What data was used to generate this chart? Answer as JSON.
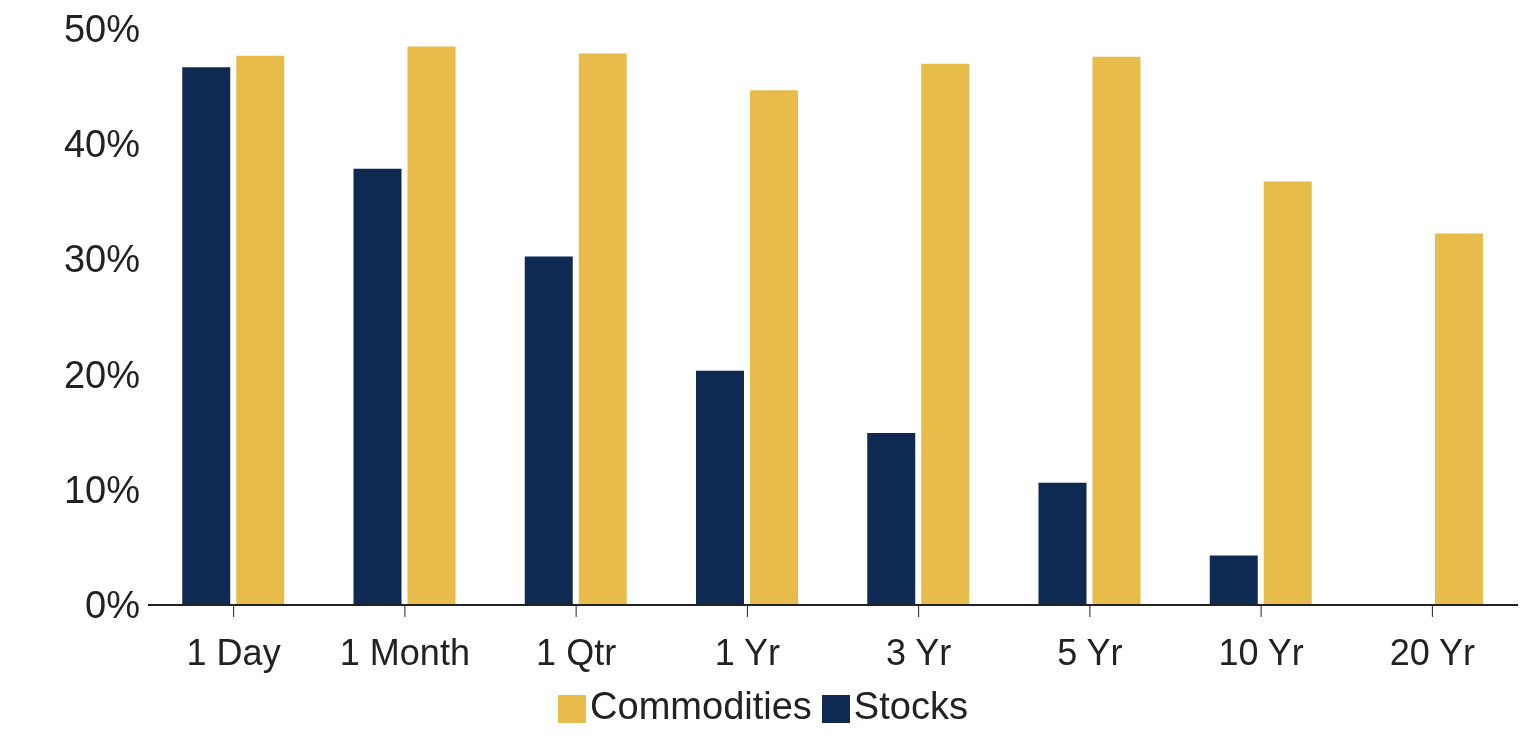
{
  "chart_data": {
    "type": "bar",
    "categories": [
      "1 Day",
      "1 Month",
      "1 Qtr",
      "1 Yr",
      "3 Yr",
      "5 Yr",
      "10 Yr",
      "20 Yr"
    ],
    "series": [
      {
        "name": "Stocks",
        "color": "#0f2a52",
        "values": [
          46.6,
          37.8,
          30.2,
          20.3,
          14.9,
          10.6,
          4.3,
          null
        ]
      },
      {
        "name": "Commodities",
        "color": "#e8bc4a",
        "values": [
          47.6,
          48.4,
          47.8,
          44.6,
          46.9,
          47.5,
          36.7,
          32.2
        ]
      }
    ],
    "ylim": [
      0,
      50
    ],
    "yticks": [
      {
        "value": 0,
        "label": "0%"
      },
      {
        "value": 10,
        "label": "10%"
      },
      {
        "value": 20,
        "label": "20%"
      },
      {
        "value": 30,
        "label": "30%"
      },
      {
        "value": 40,
        "label": "40%"
      },
      {
        "value": 50,
        "label": "50%"
      }
    ],
    "grid": false,
    "legend": "bottom"
  }
}
